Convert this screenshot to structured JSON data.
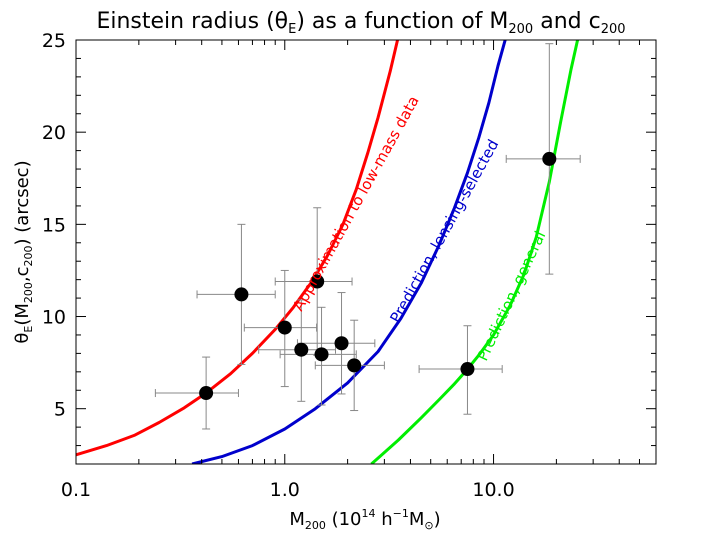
{
  "chart_data": {
    "type": "scatter",
    "title_parts": [
      "Einstein radius (",
      "θ",
      "E",
      ") as a function of M",
      "200",
      " and c",
      "200"
    ],
    "xlabel_parts": [
      "M",
      "200",
      " (10",
      "14",
      " h",
      "−1",
      "M",
      "⊙",
      ")"
    ],
    "ylabel_parts": [
      "θ",
      "E",
      "(M",
      "200",
      ",c",
      "200",
      ")  (arcsec)"
    ],
    "x_scale": "log",
    "xlim": [
      0.1,
      60
    ],
    "ylim": [
      2,
      25
    ],
    "x_ticks": [
      {
        "value": 0.1,
        "label": "0.1"
      },
      {
        "value": 1.0,
        "label": "1.0"
      },
      {
        "value": 10.0,
        "label": "10.0"
      }
    ],
    "y_ticks": [
      {
        "value": 5,
        "label": "5"
      },
      {
        "value": 10,
        "label": "10"
      },
      {
        "value": 15,
        "label": "15"
      },
      {
        "value": 20,
        "label": "20"
      },
      {
        "value": 25,
        "label": "25"
      }
    ],
    "grid": false,
    "points": [
      {
        "x": 0.42,
        "y": 5.85,
        "xlo": 0.24,
        "xhi": 0.6,
        "ylo": 3.9,
        "yhi": 7.8
      },
      {
        "x": 0.62,
        "y": 11.2,
        "xlo": 0.38,
        "xhi": 0.9,
        "ylo": 7.4,
        "yhi": 15.0
      },
      {
        "x": 1.0,
        "y": 9.4,
        "xlo": 0.64,
        "xhi": 1.42,
        "ylo": 6.2,
        "yhi": 12.5
      },
      {
        "x": 1.2,
        "y": 8.2,
        "xlo": 0.75,
        "xhi": 1.75,
        "ylo": 5.4,
        "yhi": 10.9
      },
      {
        "x": 1.43,
        "y": 11.9,
        "xlo": 0.9,
        "xhi": 2.1,
        "ylo": 7.9,
        "yhi": 15.9
      },
      {
        "x": 1.5,
        "y": 7.95,
        "xlo": 0.95,
        "xhi": 2.2,
        "ylo": 5.2,
        "yhi": 10.5
      },
      {
        "x": 1.87,
        "y": 8.55,
        "xlo": 1.15,
        "xhi": 2.7,
        "ylo": 5.8,
        "yhi": 11.3
      },
      {
        "x": 2.15,
        "y": 7.35,
        "xlo": 1.4,
        "xhi": 3.0,
        "ylo": 4.9,
        "yhi": 9.8
      },
      {
        "x": 7.5,
        "y": 7.15,
        "xlo": 4.4,
        "xhi": 11.0,
        "ylo": 4.7,
        "yhi": 9.5
      },
      {
        "x": 18.5,
        "y": 18.55,
        "xlo": 11.5,
        "xhi": 26.0,
        "ylo": 12.3,
        "yhi": 24.8
      }
    ],
    "series": [
      {
        "name": "Approximation to low-mass data",
        "color": "#ff0000",
        "x": [
          0.1,
          0.14,
          0.19,
          0.25,
          0.33,
          0.42,
          0.55,
          0.7,
          0.9,
          1.1,
          1.35,
          1.6,
          1.9,
          2.2,
          2.5,
          2.8,
          3.2,
          3.5
        ],
        "y": [
          2.5,
          3.0,
          3.55,
          4.25,
          5.05,
          5.85,
          6.9,
          8.0,
          9.3,
          10.5,
          11.9,
          13.3,
          15.0,
          16.9,
          18.9,
          20.8,
          23.3,
          25.2
        ]
      },
      {
        "name": "Prediction, lensing-selected",
        "color": "#0000cc",
        "x": [
          0.36,
          0.5,
          0.7,
          1.0,
          1.4,
          2.0,
          2.8,
          3.6,
          4.5,
          5.5,
          6.5,
          7.5,
          8.5,
          9.5,
          10.5,
          11.5
        ],
        "y": [
          2.0,
          2.4,
          3.0,
          3.9,
          5.0,
          6.4,
          8.1,
          9.9,
          11.8,
          13.9,
          15.9,
          17.8,
          19.7,
          21.6,
          23.6,
          25.2
        ]
      },
      {
        "name": "Prediction, general",
        "color": "#00ee00",
        "x": [
          2.6,
          3.5,
          4.5,
          5.5,
          6.5,
          7.5,
          8.5,
          10.0,
          12.0,
          14.0,
          16.0,
          18.5,
          21.0,
          23.5,
          25.5
        ],
        "y": [
          2.0,
          3.3,
          4.5,
          5.5,
          6.35,
          7.15,
          7.9,
          9.0,
          10.6,
          12.3,
          14.3,
          17.3,
          20.6,
          23.4,
          25.2
        ]
      }
    ],
    "annotations": [
      {
        "text": "Approximation to low-mass data",
        "color": "#ff0000",
        "x": 2.3,
        "y": 16.0,
        "angle": -61
      },
      {
        "text": "Prediction, lensing-selected",
        "color": "#0000cc",
        "x": 6.1,
        "y": 14.5,
        "angle": -61
      },
      {
        "text": "Prediction, general",
        "color": "#00ee00",
        "x": 12.8,
        "y": 11.0,
        "angle": -65
      }
    ]
  }
}
